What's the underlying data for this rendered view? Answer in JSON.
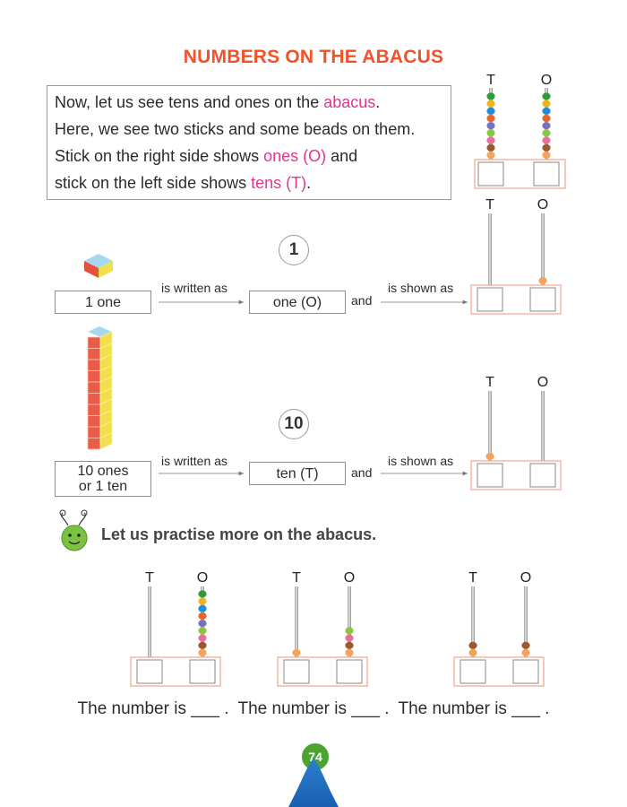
{
  "page": {
    "title": "NUMBERS ON THE ABACUS",
    "page_number": "74"
  },
  "intro": {
    "line1_pre": "Now, let us see tens and ones on the ",
    "line1_highlight": "abacus",
    "line1_post": ".",
    "line2": "Here, we see two sticks and some beads on them.",
    "line3_pre": "Stick on the right side shows ",
    "line3_highlight": "ones (O)",
    "line3_post": " and",
    "line4_pre": "stick on the left side shows ",
    "line4_highlight": "tens (T)",
    "line4_post": "."
  },
  "abacus_labels": {
    "tens": "T",
    "ones": "O"
  },
  "bead_colors": [
    "#2e9a3a",
    "#f2b21b",
    "#1c8fd6",
    "#e8652a",
    "#7a6fbf",
    "#8cc63f",
    "#e86f9b",
    "#9b5a2e",
    "#f5a35c"
  ],
  "example_one": {
    "circle": "1",
    "left_box": "1 one",
    "arrow1_label": "is written as",
    "middle_box": "one (O)",
    "and_label": "and",
    "arrow2_label": "is shown as",
    "tens_beads": 0,
    "ones_beads": 1
  },
  "example_ten": {
    "circle": "10",
    "left_box_line1": "10 ones",
    "left_box_line2": "or 1 ten",
    "arrow1_label": "is written as",
    "middle_box": "ten (T)",
    "and_label": "and",
    "arrow2_label": "is shown as",
    "tens_beads": 1,
    "ones_beads": 0
  },
  "top_abacus": {
    "tens_beads": 9,
    "ones_beads": 9
  },
  "practise": {
    "heading": "Let us practise more on the abacus.",
    "items": [
      {
        "tens_beads": 0,
        "ones_beads": 9,
        "sentence": "The number is ___ ."
      },
      {
        "tens_beads": 1,
        "ones_beads": 4,
        "sentence": "The number is ___ ."
      },
      {
        "tens_beads": 2,
        "ones_beads": 2,
        "sentence": "The number is ___ ."
      }
    ]
  }
}
